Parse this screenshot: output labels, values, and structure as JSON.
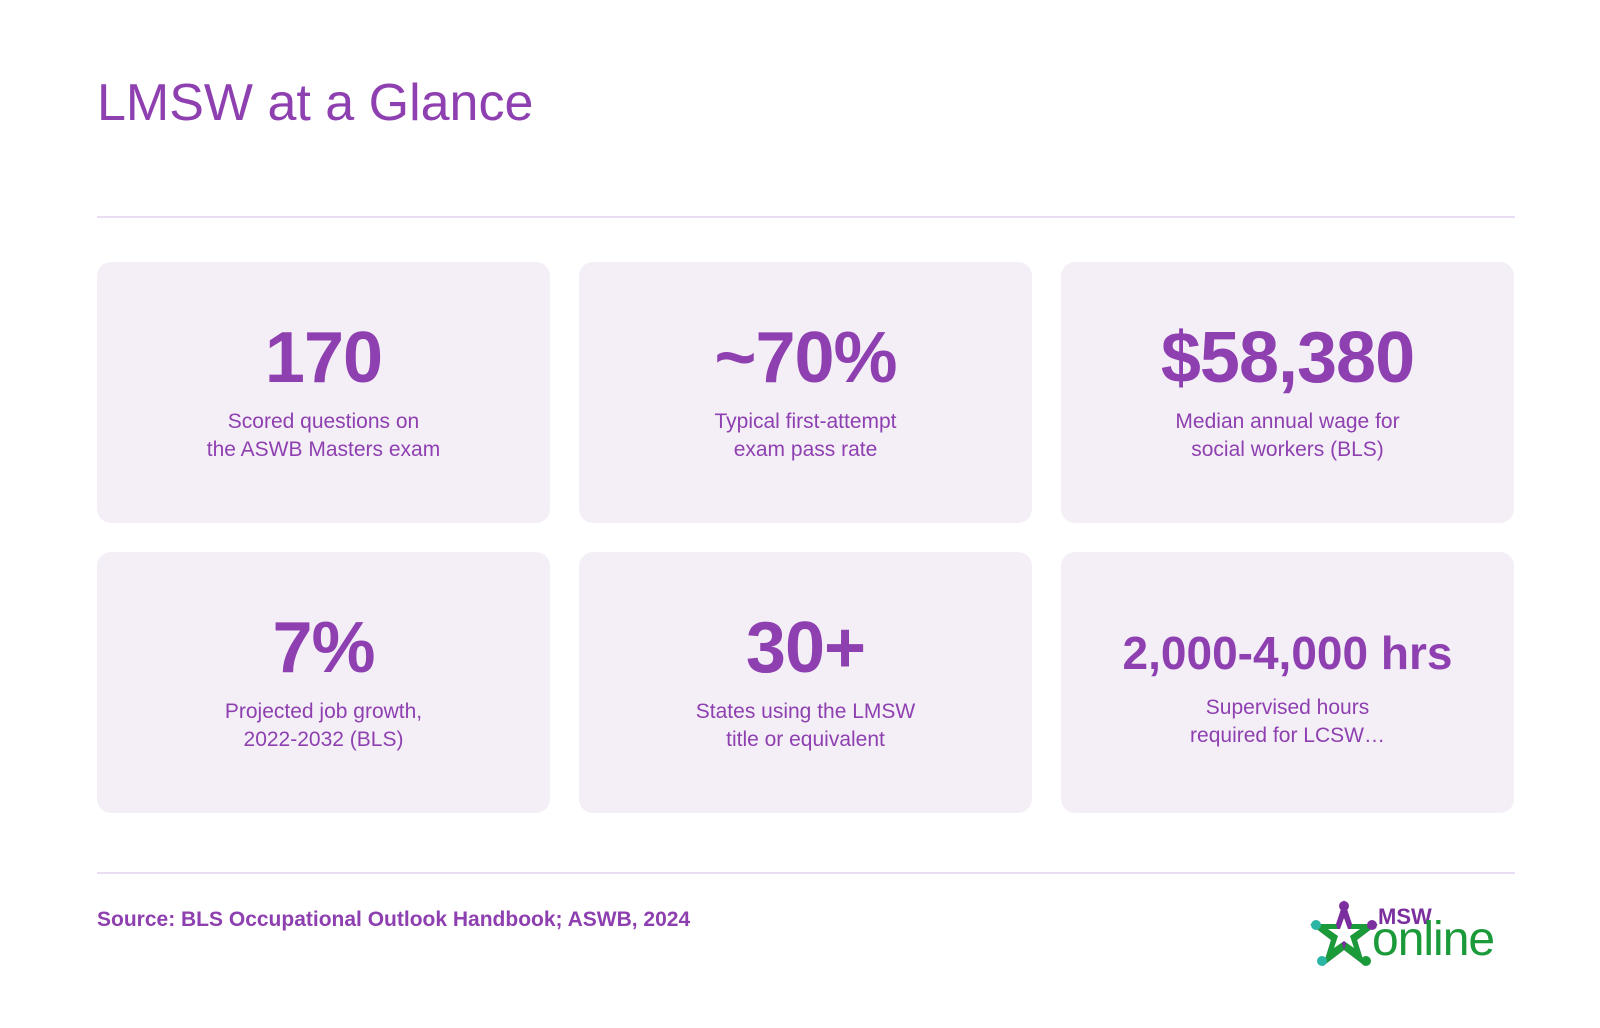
{
  "title": "LMSW at a Glance",
  "stats": [
    {
      "value": "170",
      "label_line1": "Scored questions on",
      "label_line2": "the ASWB Masters exam"
    },
    {
      "value": "~70%",
      "label_line1": "Typical first-attempt",
      "label_line2": "exam pass rate"
    },
    {
      "value": "$58,380",
      "label_line1": "Median annual wage for",
      "label_line2": "social workers (BLS)"
    },
    {
      "value": "7%",
      "label_line1": "Projected job growth,",
      "label_line2": "2022-2032 (BLS)"
    },
    {
      "value": "30+",
      "label_line1": "States using the LMSW",
      "label_line2": "title or equivalent"
    },
    {
      "value": "2,000-4,000 hrs",
      "label_line1": "Supervised hours",
      "label_line2": "required for LCSW…"
    }
  ],
  "source": "Source: BLS Occupational Outlook Handbook; ASWB, 2024",
  "logo": {
    "brand_top": "MSW",
    "brand_bottom": "online",
    "icon": "star-people-icon",
    "colors": {
      "purple": "#7b2f9e",
      "green": "#1b9a3a",
      "teal": "#2bb5a4"
    }
  },
  "colors": {
    "accent": "#8e3fb0",
    "card_background": "#f4eff7",
    "divider": "#eadcf2"
  }
}
